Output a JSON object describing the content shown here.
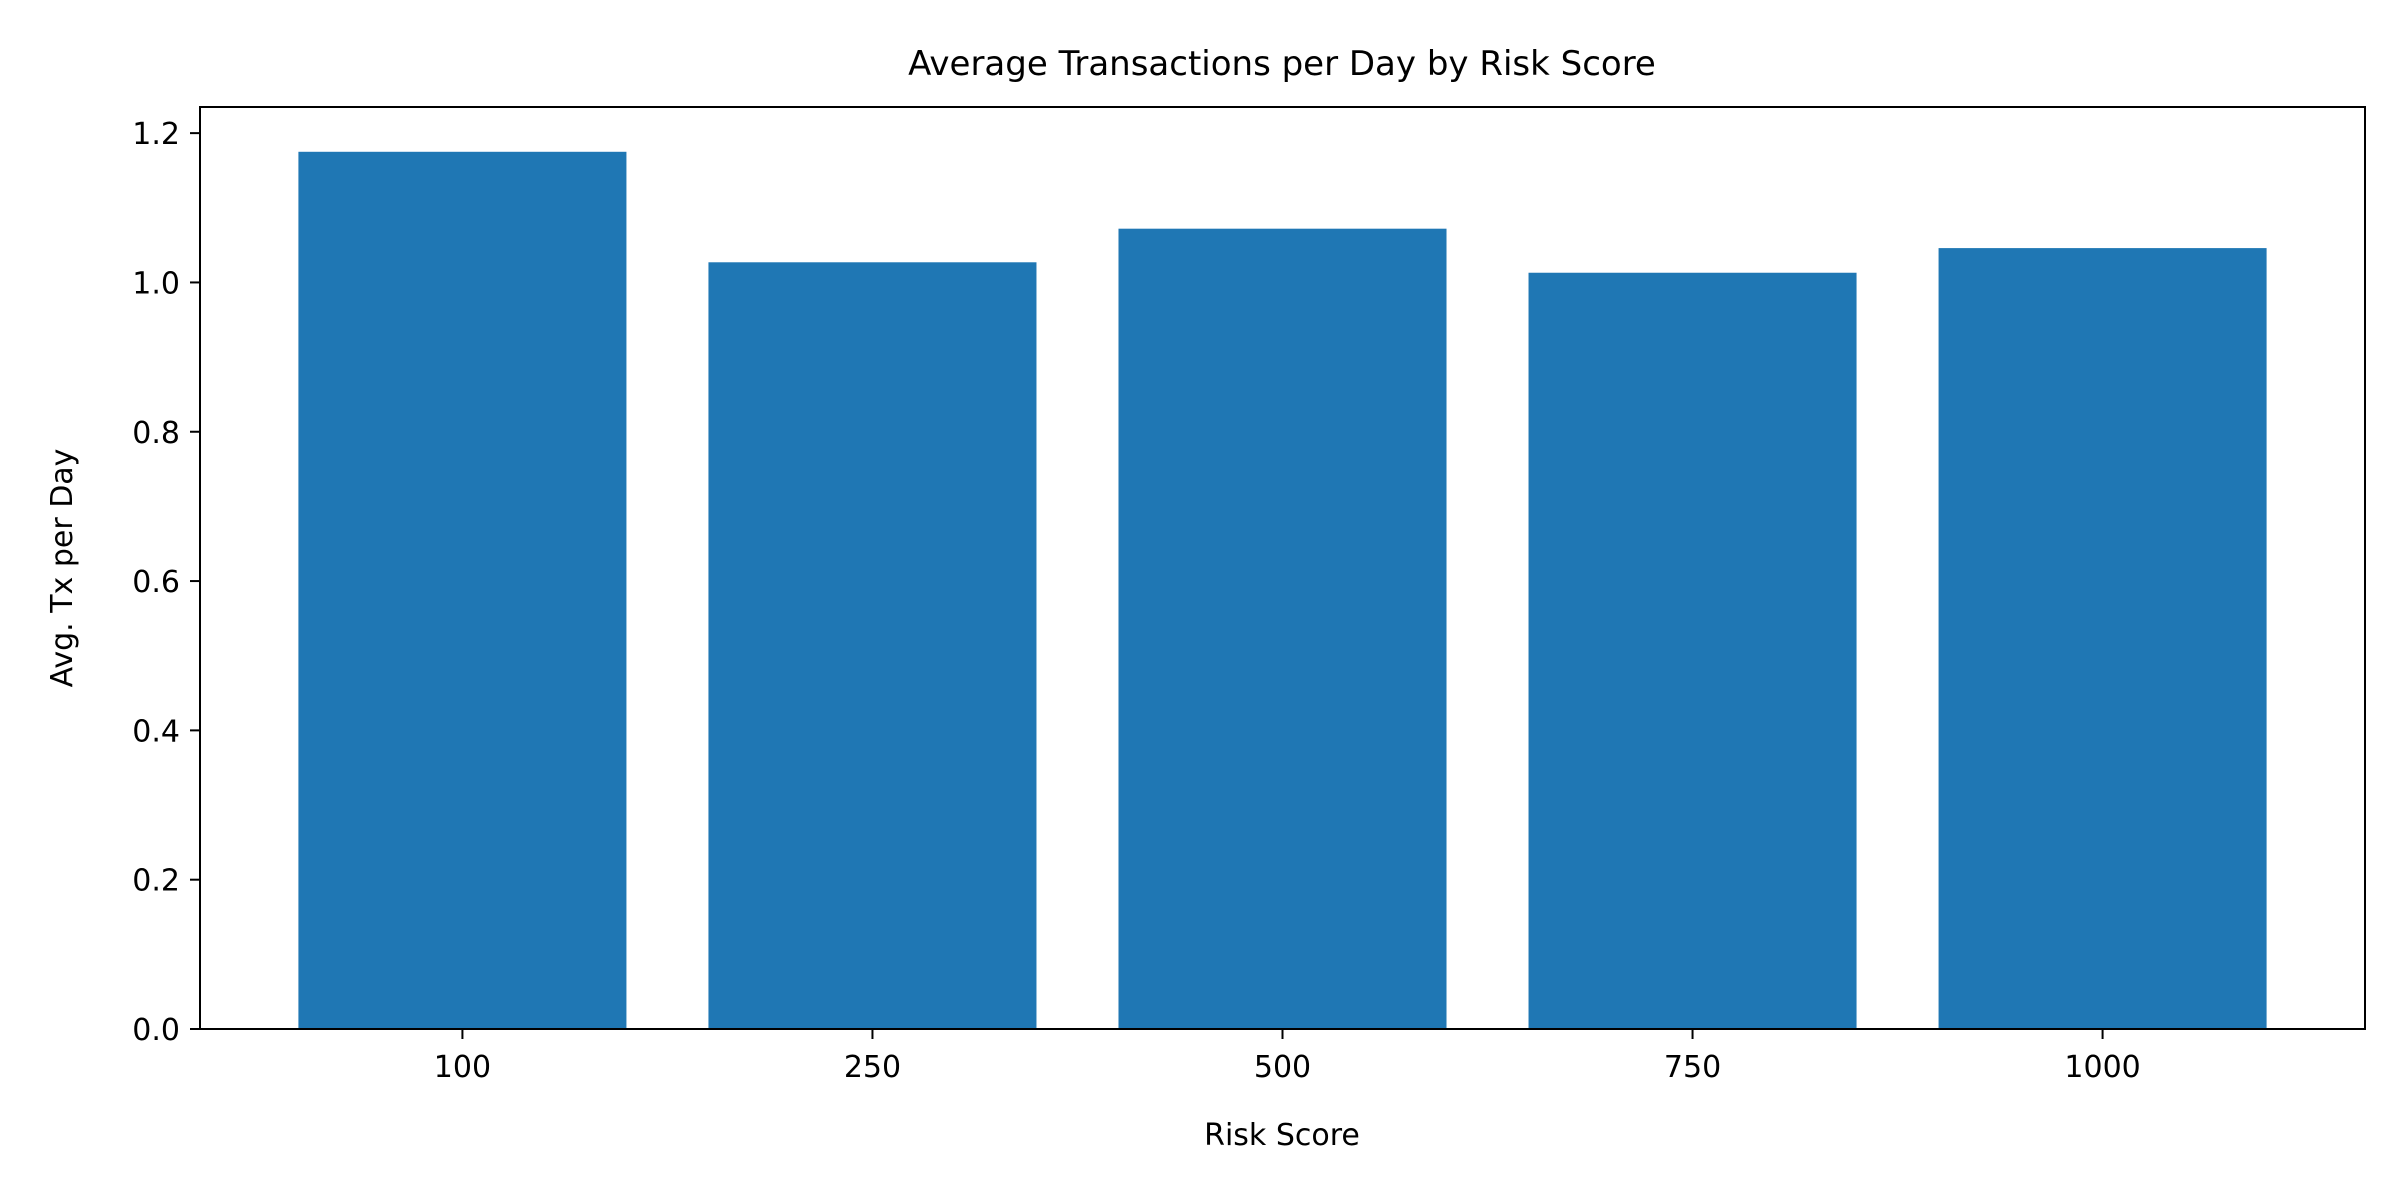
{
  "chart_data": {
    "type": "bar",
    "title": "Average Transactions per Day by Risk Score",
    "xlabel": "Risk Score",
    "ylabel": "Avg. Tx per Day",
    "categories": [
      "100",
      "250",
      "500",
      "750",
      "1000"
    ],
    "values": [
      1.175,
      1.027,
      1.072,
      1.013,
      1.046
    ],
    "ylim": [
      0,
      1.235
    ],
    "yticks": [
      "0.0",
      "0.2",
      "0.4",
      "0.6",
      "0.8",
      "1.0",
      "1.2"
    ],
    "grid": false,
    "legend": "none",
    "bar_color": "#1f77b4"
  }
}
